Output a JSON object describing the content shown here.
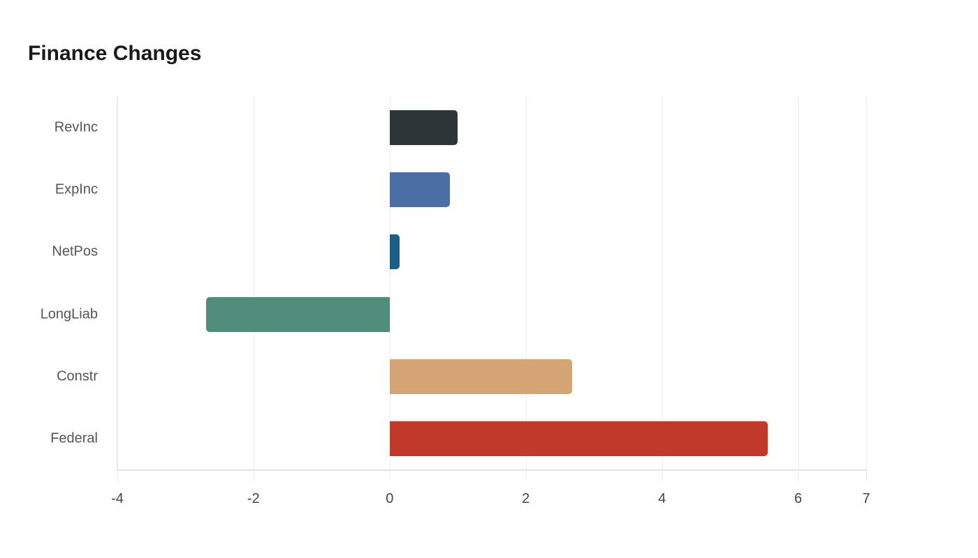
{
  "chart_data": {
    "type": "bar",
    "orientation": "horizontal",
    "title": "Finance Changes",
    "xlabel": "",
    "ylabel": "",
    "xlim": [
      -4,
      7
    ],
    "x_ticks": [
      -4,
      -2,
      0,
      2,
      4,
      6,
      7
    ],
    "grid": true,
    "legend": null,
    "categories": [
      "RevInc",
      "ExpInc",
      "NetPos",
      "LongLiab",
      "Constr",
      "Federal"
    ],
    "values": [
      1.0,
      0.88,
      0.15,
      -2.7,
      2.68,
      5.55
    ],
    "colors": [
      "#2e3538",
      "#4a6fa5",
      "#1b5f86",
      "#4f8c7a",
      "#d4a574",
      "#c0392b"
    ]
  },
  "x_tick_labels": [
    "-4",
    "-2",
    "0",
    "2",
    "4",
    "6",
    "7"
  ]
}
